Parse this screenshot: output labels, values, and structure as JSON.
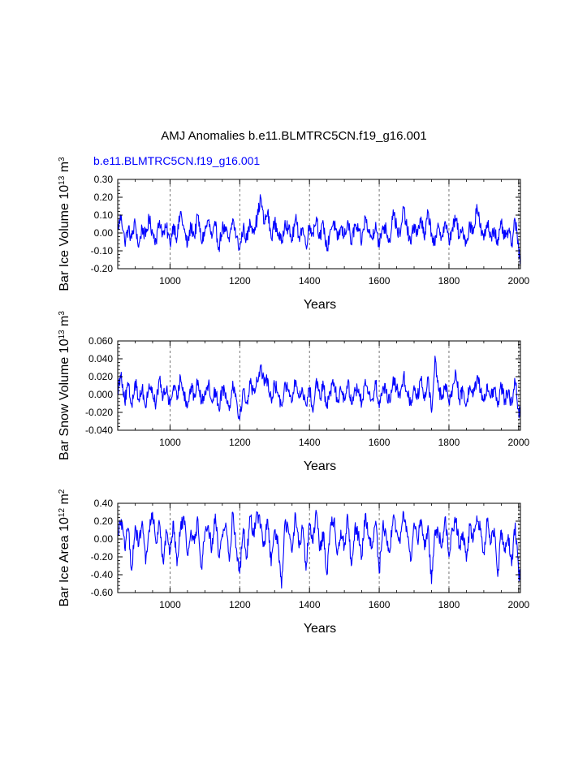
{
  "title": "AMJ Anomalies b.e11.BLMTRC5CN.f19_g16.001",
  "subtitle": "b.e11.BLMTRC5CN.f19_g16.001",
  "colors": {
    "line": "#0000ff",
    "subtitle": "#0000ff",
    "axes": "#000000",
    "grid": "#555555"
  },
  "chart_data": [
    {
      "type": "line",
      "ylabel": {
        "main": "Bar Ice Volume 10",
        "sup": "13",
        "unit": " m",
        "unit_sup": "3"
      },
      "xlabel": "Years",
      "xlim": [
        850,
        2005
      ],
      "ylim": [
        -0.2,
        0.3
      ],
      "xticks": [
        1000,
        1200,
        1400,
        1600,
        1800,
        2000
      ],
      "xtick_labels": [
        "1000",
        "1200",
        "1400",
        "1600",
        "1800",
        "2000"
      ],
      "yticks": [
        -0.2,
        -0.1,
        0.0,
        0.1,
        0.2,
        0.3
      ],
      "ytick_labels": [
        "-0.20",
        "-0.10",
        "0.00",
        "0.10",
        "0.20",
        "0.30"
      ],
      "grid_x": [
        1000,
        1200,
        1400,
        1600,
        1800,
        2000
      ],
      "series": [
        {
          "name": "Bar Ice Volume",
          "x": [
            850,
            860,
            870,
            880,
            890,
            900,
            910,
            920,
            930,
            940,
            950,
            960,
            970,
            980,
            990,
            1000,
            1010,
            1020,
            1030,
            1040,
            1050,
            1060,
            1070,
            1080,
            1090,
            1100,
            1110,
            1120,
            1130,
            1140,
            1150,
            1160,
            1170,
            1180,
            1190,
            1200,
            1210,
            1220,
            1230,
            1240,
            1250,
            1260,
            1270,
            1280,
            1290,
            1300,
            1310,
            1320,
            1330,
            1340,
            1350,
            1360,
            1370,
            1380,
            1390,
            1400,
            1410,
            1420,
            1430,
            1440,
            1450,
            1460,
            1470,
            1480,
            1490,
            1500,
            1510,
            1520,
            1530,
            1540,
            1550,
            1560,
            1570,
            1580,
            1590,
            1600,
            1610,
            1620,
            1630,
            1640,
            1650,
            1660,
            1670,
            1680,
            1690,
            1700,
            1710,
            1720,
            1730,
            1740,
            1750,
            1760,
            1770,
            1780,
            1790,
            1800,
            1810,
            1820,
            1830,
            1840,
            1850,
            1860,
            1870,
            1880,
            1890,
            1900,
            1910,
            1920,
            1930,
            1940,
            1950,
            1960,
            1970,
            1980,
            1990,
            2000,
            2005
          ],
          "y": [
            0.02,
            0.1,
            -0.05,
            0.02,
            -0.03,
            0.06,
            -0.08,
            0.03,
            -0.02,
            0.08,
            0.0,
            -0.04,
            0.07,
            -0.01,
            0.03,
            -0.06,
            0.05,
            -0.03,
            0.12,
            0.02,
            -0.07,
            0.04,
            -0.02,
            0.1,
            -0.05,
            0.01,
            0.07,
            -0.03,
            0.04,
            -0.08,
            0.03,
            0.01,
            -0.05,
            0.08,
            -0.02,
            -0.09,
            0.03,
            -0.04,
            0.06,
            0.02,
            0.08,
            0.2,
            0.05,
            0.12,
            -0.03,
            0.06,
            0.0,
            -0.06,
            0.07,
            0.02,
            -0.04,
            0.08,
            -0.02,
            0.03,
            -0.07,
            0.04,
            0.0,
            0.09,
            -0.03,
            0.05,
            -0.1,
            0.02,
            0.06,
            -0.04,
            0.03,
            -0.02,
            0.07,
            -0.06,
            0.04,
            0.01,
            -0.05,
            0.09,
            0.0,
            -0.03,
            0.06,
            -0.08,
            0.04,
            0.02,
            -0.05,
            0.13,
            0.03,
            -0.02,
            0.14,
            0.02,
            -0.06,
            0.05,
            -0.01,
            0.09,
            -0.04,
            0.12,
            0.0,
            -0.07,
            0.04,
            -0.02,
            0.06,
            -0.05,
            0.03,
            0.08,
            -0.03,
            0.02,
            -0.06,
            0.05,
            0.0,
            0.16,
            0.03,
            -0.04,
            0.06,
            -0.02,
            0.03,
            -0.07,
            0.05,
            -0.03,
            0.01,
            -0.06,
            0.07,
            -0.09,
            -0.14
          ]
        }
      ]
    },
    {
      "type": "line",
      "ylabel": {
        "main": "Bar Snow Volume 10",
        "sup": "13",
        "unit": " m",
        "unit_sup": "3"
      },
      "xlabel": "Years",
      "xlim": [
        850,
        2005
      ],
      "ylim": [
        -0.04,
        0.06
      ],
      "xticks": [
        1000,
        1200,
        1400,
        1600,
        1800,
        2000
      ],
      "xtick_labels": [
        "1000",
        "1200",
        "1400",
        "1600",
        "1800",
        "2000"
      ],
      "yticks": [
        -0.04,
        -0.02,
        0.0,
        0.02,
        0.04,
        0.06
      ],
      "ytick_labels": [
        "-0.040",
        "-0.020",
        "0.000",
        "0.020",
        "0.040",
        "0.060"
      ],
      "grid_x": [
        1000,
        1200,
        1400,
        1600,
        1800,
        2000
      ],
      "series": [
        {
          "name": "Bar Snow Volume",
          "x": [
            850,
            860,
            870,
            880,
            890,
            900,
            910,
            920,
            930,
            940,
            950,
            960,
            970,
            980,
            990,
            1000,
            1010,
            1020,
            1030,
            1040,
            1050,
            1060,
            1070,
            1080,
            1090,
            1100,
            1110,
            1120,
            1130,
            1140,
            1150,
            1160,
            1170,
            1180,
            1190,
            1200,
            1210,
            1220,
            1230,
            1240,
            1250,
            1260,
            1270,
            1280,
            1290,
            1300,
            1310,
            1320,
            1330,
            1340,
            1350,
            1360,
            1370,
            1380,
            1390,
            1400,
            1410,
            1420,
            1430,
            1440,
            1450,
            1460,
            1470,
            1480,
            1490,
            1500,
            1510,
            1520,
            1530,
            1540,
            1550,
            1560,
            1570,
            1580,
            1590,
            1600,
            1610,
            1620,
            1630,
            1640,
            1650,
            1660,
            1670,
            1680,
            1690,
            1700,
            1710,
            1720,
            1730,
            1740,
            1750,
            1760,
            1770,
            1780,
            1790,
            1800,
            1810,
            1820,
            1830,
            1840,
            1850,
            1860,
            1870,
            1880,
            1890,
            1900,
            1910,
            1920,
            1930,
            1940,
            1950,
            1960,
            1970,
            1980,
            1990,
            2000,
            2005
          ],
          "y": [
            0.005,
            0.025,
            -0.008,
            0.01,
            -0.012,
            0.015,
            -0.005,
            0.008,
            -0.015,
            0.012,
            0.0,
            -0.01,
            0.018,
            -0.004,
            0.007,
            -0.012,
            0.01,
            -0.006,
            0.02,
            0.003,
            -0.014,
            0.009,
            -0.003,
            0.016,
            -0.01,
            0.004,
            0.012,
            -0.008,
            0.006,
            -0.016,
            0.008,
            0.002,
            -0.018,
            0.015,
            -0.005,
            -0.028,
            0.006,
            -0.01,
            0.012,
            0.004,
            0.015,
            0.033,
            0.01,
            0.018,
            -0.006,
            0.012,
            0.0,
            -0.012,
            0.014,
            0.003,
            -0.008,
            0.016,
            -0.004,
            0.006,
            -0.012,
            0.008,
            -0.02,
            0.018,
            -0.005,
            0.01,
            -0.015,
            0.004,
            0.013,
            -0.008,
            0.006,
            -0.004,
            0.014,
            -0.01,
            0.008,
            0.002,
            -0.01,
            0.017,
            0.0,
            -0.006,
            0.012,
            -0.015,
            0.008,
            0.004,
            -0.009,
            0.02,
            0.005,
            -0.004,
            0.022,
            0.003,
            -0.011,
            0.01,
            -0.002,
            0.016,
            -0.007,
            0.02,
            -0.02,
            0.043,
            0.005,
            -0.004,
            0.012,
            -0.01,
            0.006,
            0.024,
            -0.006,
            0.004,
            -0.012,
            0.01,
            0.0,
            0.018,
            0.006,
            -0.008,
            0.012,
            -0.004,
            0.006,
            -0.014,
            0.01,
            -0.006,
            0.002,
            -0.012,
            0.014,
            -0.018,
            -0.024
          ]
        }
      ]
    },
    {
      "type": "line",
      "ylabel": {
        "main": "Bar Ice Area 10",
        "sup": "12",
        "unit": " m",
        "unit_sup": "2"
      },
      "xlabel": "Years",
      "xlim": [
        850,
        2005
      ],
      "ylim": [
        -0.6,
        0.4
      ],
      "xticks": [
        1000,
        1200,
        1400,
        1600,
        1800,
        2000
      ],
      "xtick_labels": [
        "1000",
        "1200",
        "1400",
        "1600",
        "1800",
        "2000"
      ],
      "yticks": [
        -0.6,
        -0.4,
        -0.2,
        0.0,
        0.2,
        0.4
      ],
      "ytick_labels": [
        "-0.60",
        "-0.40",
        "-0.20",
        "0.00",
        "0.20",
        "0.40"
      ],
      "grid_x": [
        1000,
        1200,
        1400,
        1600,
        1800,
        2000
      ],
      "series": [
        {
          "name": "Bar Ice Area",
          "x": [
            850,
            860,
            870,
            880,
            890,
            900,
            910,
            920,
            930,
            940,
            950,
            960,
            970,
            980,
            990,
            1000,
            1010,
            1020,
            1030,
            1040,
            1050,
            1060,
            1070,
            1080,
            1090,
            1100,
            1110,
            1120,
            1130,
            1140,
            1150,
            1160,
            1170,
            1180,
            1190,
            1200,
            1210,
            1220,
            1230,
            1240,
            1250,
            1260,
            1270,
            1280,
            1290,
            1300,
            1310,
            1320,
            1330,
            1340,
            1350,
            1360,
            1370,
            1380,
            1390,
            1400,
            1410,
            1420,
            1430,
            1440,
            1450,
            1460,
            1470,
            1480,
            1490,
            1500,
            1510,
            1520,
            1530,
            1540,
            1550,
            1560,
            1570,
            1580,
            1590,
            1600,
            1610,
            1620,
            1630,
            1640,
            1650,
            1660,
            1670,
            1680,
            1690,
            1700,
            1710,
            1720,
            1730,
            1740,
            1750,
            1760,
            1770,
            1780,
            1790,
            1800,
            1810,
            1820,
            1830,
            1840,
            1850,
            1860,
            1870,
            1880,
            1890,
            1900,
            1910,
            1920,
            1930,
            1940,
            1950,
            1960,
            1970,
            1980,
            1990,
            2000,
            2005
          ],
          "y": [
            0.05,
            0.22,
            -0.1,
            0.12,
            -0.35,
            0.15,
            -0.08,
            0.2,
            -0.28,
            0.1,
            0.3,
            -0.05,
            0.18,
            -0.25,
            0.08,
            -0.15,
            0.2,
            -0.3,
            0.12,
            0.25,
            -0.18,
            0.1,
            -0.05,
            0.22,
            -0.32,
            0.08,
            0.15,
            -0.12,
            0.28,
            -0.2,
            0.05,
            0.18,
            -0.25,
            0.3,
            -0.1,
            -0.38,
            0.12,
            -0.2,
            0.25,
            0.05,
            0.3,
            0.15,
            -0.08,
            0.22,
            -0.3,
            0.1,
            -0.05,
            -0.55,
            0.2,
            0.08,
            -0.15,
            0.28,
            -0.1,
            0.12,
            -0.35,
            0.18,
            -0.05,
            0.3,
            -0.12,
            0.08,
            -0.4,
            0.15,
            0.22,
            -0.18,
            0.1,
            -0.08,
            0.25,
            -0.3,
            0.12,
            0.05,
            -0.2,
            0.28,
            0.0,
            -0.1,
            0.2,
            -0.38,
            0.15,
            0.05,
            -0.15,
            0.25,
            0.1,
            -0.05,
            0.3,
            0.08,
            -0.25,
            0.18,
            -0.02,
            0.22,
            -0.12,
            0.15,
            -0.5,
            0.1,
            0.05,
            -0.08,
            0.25,
            -0.2,
            0.12,
            0.22,
            -0.1,
            0.08,
            -0.25,
            0.15,
            0.0,
            0.26,
            0.1,
            -0.15,
            0.2,
            -0.05,
            0.12,
            -0.42,
            0.1,
            -0.1,
            0.05,
            -0.3,
            0.18,
            -0.4,
            -0.38
          ]
        }
      ]
    }
  ]
}
